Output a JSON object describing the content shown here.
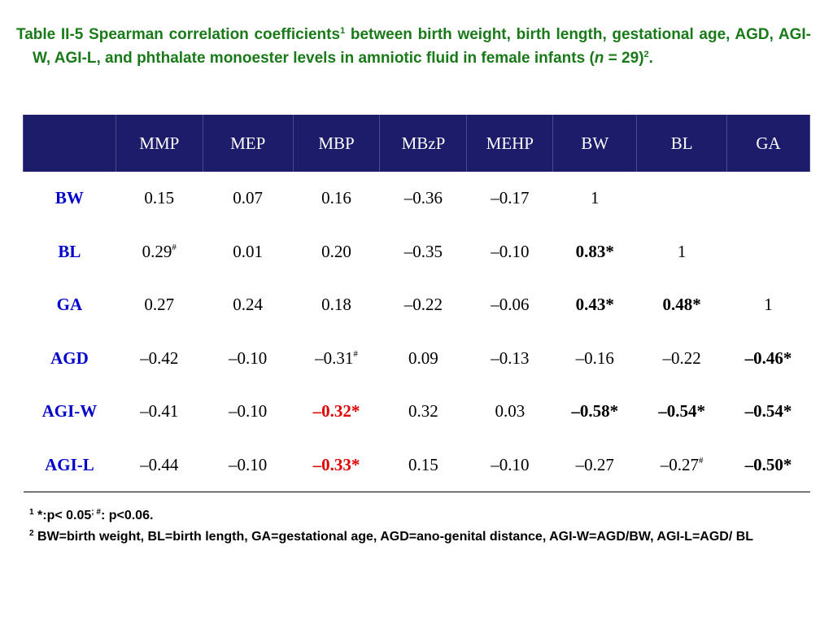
{
  "caption": {
    "label": "Table II-5",
    "text_a": " Spearman correlation coefficients",
    "sup_a": "1",
    "text_b": " between birth weight, birth length, gestational age, AGD, AGI-W, AGI-L, and phthalate monoester levels in amniotic fluid in female infants (",
    "n_var": "n",
    "text_c": " = 29)",
    "sup_b": "2",
    "text_d": "."
  },
  "table": {
    "headers": [
      "",
      "MMP",
      "MEP",
      "MBP",
      "MBzP",
      "MEHP",
      "BW",
      "BL",
      "GA"
    ],
    "rows": [
      {
        "label": "BW",
        "cells": [
          "0.15",
          "0.07",
          "0.16",
          "–0.36",
          "–0.17",
          "1",
          "",
          ""
        ]
      },
      {
        "label": "BL",
        "cells": [
          "0.29",
          "0.01",
          "0.20",
          "–0.35",
          "–0.10",
          "0.83*",
          "1",
          ""
        ],
        "sup": {
          "0": "#"
        }
      },
      {
        "label": "GA",
        "cells": [
          "0.27",
          "0.24",
          "0.18",
          "–0.22",
          "–0.06",
          "0.43*",
          "0.48*",
          "1"
        ]
      },
      {
        "label": "AGD",
        "cells": [
          "–0.42",
          "–0.10",
          "–0.31",
          "0.09",
          "–0.13",
          "–0.16",
          "–0.22",
          "–0.46*"
        ],
        "sup": {
          "2": "#"
        }
      },
      {
        "label": "AGI-W",
        "cells": [
          "–0.41",
          "–0.10",
          "–0.32*",
          "0.32",
          "0.03",
          "–0.58*",
          "–0.54*",
          "–0.54*"
        ]
      },
      {
        "label": "AGI-L",
        "cells": [
          "–0.44",
          "–0.10",
          "–0.33*",
          "0.15",
          "–0.10",
          "–0.27",
          "–0.27",
          "–0.50*"
        ],
        "sup": {
          "6": "#"
        }
      }
    ]
  },
  "notes": [
    {
      "marker": "1",
      "text": " *:p< 0.05",
      "sup2": "; #",
      "text2": ": p<0.06."
    },
    {
      "marker": "2",
      "text": " BW=birth weight, BL=birth length, GA=gestational age, AGD=ano-genital distance, AGI-W=AGD/BW, AGI-L=AGD/ BL",
      "sup2": "",
      "text2": ""
    }
  ],
  "colors": {
    "caption": "#1a7a1a",
    "header_bg": "#1c1c6b",
    "row_label": "#0000cc",
    "significant_red": "#e00000"
  }
}
